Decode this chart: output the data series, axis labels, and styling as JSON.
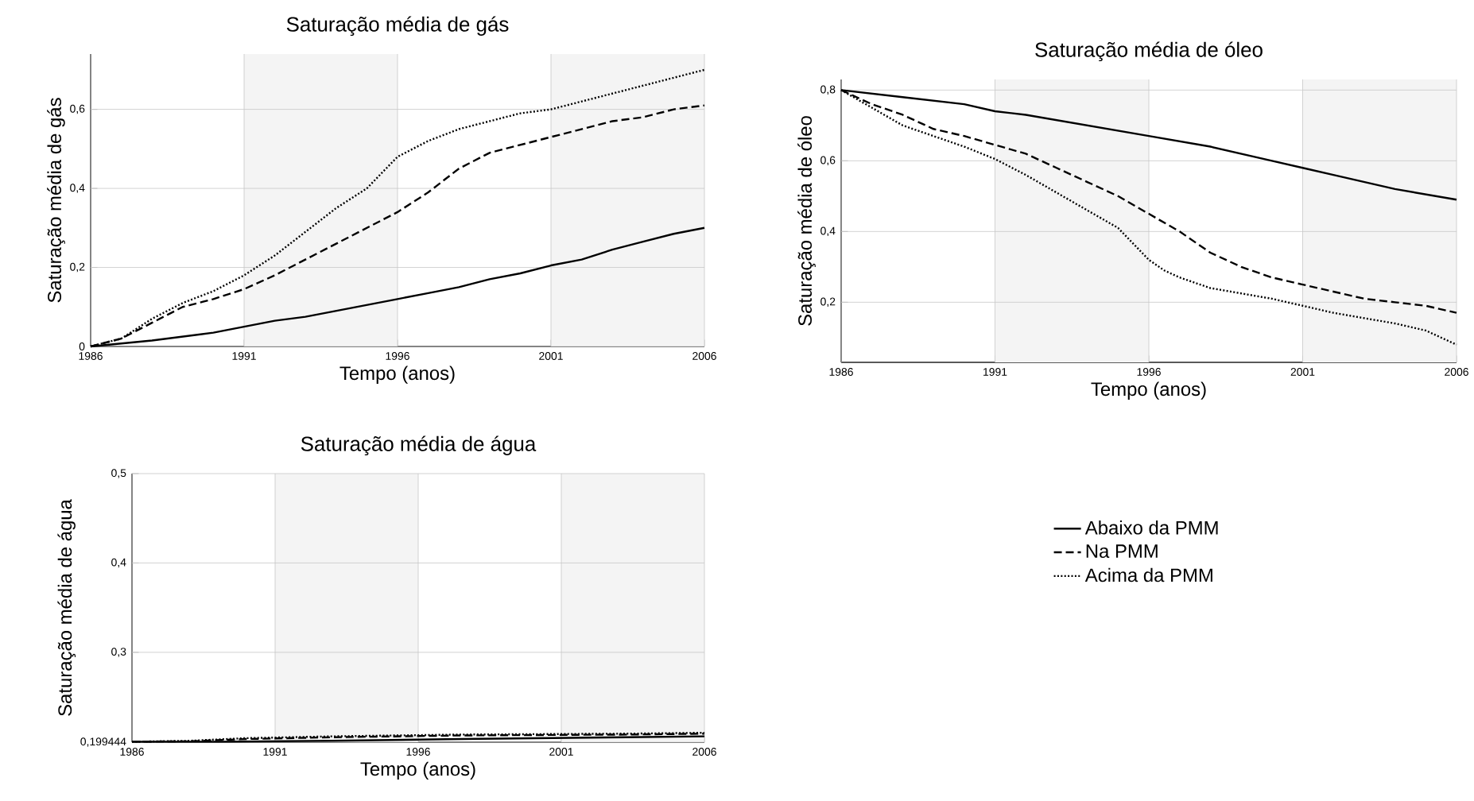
{
  "chart_data": [
    {
      "type": "line",
      "title": "Saturação média de gás",
      "xlabel": "Tempo (anos)",
      "ylabel": "Saturação média de gás",
      "grid": true,
      "xlim": [
        1986,
        2006
      ],
      "xticks": [
        1986,
        1991,
        1996,
        2001,
        2006
      ],
      "ylim": [
        0,
        0.74
      ],
      "yticks": [
        {
          "value": 0,
          "label": "0"
        },
        {
          "value": 0.2,
          "label": "0,2"
        },
        {
          "value": 0.4,
          "label": "0,4"
        },
        {
          "value": 0.6,
          "label": "0,6"
        }
      ],
      "bands": [
        {
          "axis": "x",
          "from": 1991,
          "to": 1996,
          "color": "#f4f4f4"
        },
        {
          "axis": "x",
          "from": 2001,
          "to": 2006,
          "color": "#f4f4f4"
        }
      ],
      "series": [
        {
          "color": "#000000",
          "line_style": "solid",
          "x": [
            1986,
            1988,
            1990,
            1991,
            1992,
            1993,
            1994,
            1995,
            1996,
            1997,
            1998,
            1999,
            2000,
            2001,
            2002,
            2003,
            2004,
            2005,
            2006
          ],
          "values": [
            0,
            0.015,
            0.035,
            0.05,
            0.065,
            0.075,
            0.09,
            0.105,
            0.12,
            0.135,
            0.15,
            0.17,
            0.185,
            0.205,
            0.22,
            0.245,
            0.265,
            0.285,
            0.3
          ]
        },
        {
          "color": "#000000",
          "line_style": "dashed",
          "x": [
            1986,
            1987,
            1988,
            1989,
            1990,
            1991,
            1992,
            1993,
            1994,
            1995,
            1996,
            1997,
            1998,
            1999,
            2000,
            2001,
            2002,
            2003,
            2004,
            2005,
            2006
          ],
          "values": [
            0,
            0.02,
            0.06,
            0.1,
            0.12,
            0.145,
            0.18,
            0.22,
            0.26,
            0.3,
            0.34,
            0.39,
            0.45,
            0.49,
            0.51,
            0.53,
            0.55,
            0.57,
            0.58,
            0.6,
            0.61
          ]
        },
        {
          "color": "#000000",
          "line_style": "dotted",
          "x": [
            1986,
            1987,
            1988,
            1989,
            1990,
            1991,
            1992,
            1993,
            1994,
            1995,
            1995.5,
            1996,
            1996.5,
            1997,
            1998,
            1999,
            2000,
            2001,
            2002,
            2003,
            2004,
            2005,
            2006
          ],
          "values": [
            0,
            0.02,
            0.07,
            0.11,
            0.14,
            0.18,
            0.23,
            0.29,
            0.35,
            0.4,
            0.44,
            0.48,
            0.5,
            0.52,
            0.55,
            0.57,
            0.59,
            0.6,
            0.62,
            0.64,
            0.66,
            0.68,
            0.7
          ]
        }
      ]
    },
    {
      "type": "line",
      "title": "Saturação média de óleo",
      "xlabel": "Tempo (anos)",
      "ylabel": "Saturação média de óleo",
      "grid": true,
      "xlim": [
        1986,
        2006
      ],
      "xticks": [
        1986,
        1991,
        1996,
        2001,
        2006
      ],
      "ylim": [
        0.03,
        0.83
      ],
      "yticks": [
        {
          "value": 0.2,
          "label": "0,2"
        },
        {
          "value": 0.4,
          "label": "0,4"
        },
        {
          "value": 0.6,
          "label": "0,6"
        },
        {
          "value": 0.8,
          "label": "0,8"
        }
      ],
      "bands": [
        {
          "axis": "x",
          "from": 1991,
          "to": 1996,
          "color": "#f4f4f4"
        },
        {
          "axis": "x",
          "from": 2001,
          "to": 2006,
          "color": "#f4f4f4"
        }
      ],
      "series": [
        {
          "color": "#000000",
          "line_style": "solid",
          "x": [
            1986,
            1988,
            1990,
            1991,
            1992,
            1994,
            1996,
            1998,
            2000,
            2001,
            2002,
            2004,
            2006
          ],
          "values": [
            0.8,
            0.78,
            0.76,
            0.74,
            0.73,
            0.7,
            0.67,
            0.64,
            0.6,
            0.58,
            0.56,
            0.52,
            0.49
          ]
        },
        {
          "color": "#000000",
          "line_style": "dashed",
          "x": [
            1986,
            1987,
            1988,
            1989,
            1990,
            1991,
            1992,
            1993,
            1994,
            1995,
            1996,
            1997,
            1998,
            1999,
            2000,
            2001,
            2002,
            2003,
            2004,
            2005,
            2006
          ],
          "values": [
            0.8,
            0.76,
            0.73,
            0.69,
            0.67,
            0.645,
            0.62,
            0.58,
            0.54,
            0.5,
            0.45,
            0.4,
            0.34,
            0.3,
            0.27,
            0.25,
            0.23,
            0.21,
            0.2,
            0.19,
            0.17
          ]
        },
        {
          "color": "#000000",
          "line_style": "dotted",
          "x": [
            1986,
            1987,
            1988,
            1989,
            1990,
            1991,
            1992,
            1993,
            1994,
            1995,
            1996,
            1996.5,
            1997,
            1998,
            2000,
            2001,
            2002,
            2004,
            2005,
            2006
          ],
          "values": [
            0.8,
            0.75,
            0.7,
            0.67,
            0.64,
            0.605,
            0.56,
            0.51,
            0.46,
            0.41,
            0.32,
            0.29,
            0.27,
            0.24,
            0.21,
            0.19,
            0.17,
            0.14,
            0.12,
            0.08
          ]
        }
      ]
    },
    {
      "type": "line",
      "title": "Saturação média de água",
      "xlabel": "Tempo (anos)",
      "ylabel": "Saturação média de água",
      "grid": true,
      "legend": "right",
      "xlim": [
        1986,
        2006
      ],
      "xticks": [
        1986,
        1991,
        1996,
        2001,
        2006
      ],
      "ylim": [
        0.199444,
        0.5
      ],
      "yticks": [
        {
          "value": 0.199444,
          "label": "0,199444"
        },
        {
          "value": 0.3,
          "label": "0,3"
        },
        {
          "value": 0.4,
          "label": "0,4"
        },
        {
          "value": 0.5,
          "label": "0,5"
        }
      ],
      "bands": [
        {
          "axis": "x",
          "from": 1991,
          "to": 1996,
          "color": "#f4f4f4"
        },
        {
          "axis": "x",
          "from": 2001,
          "to": 2006,
          "color": "#f4f4f4"
        }
      ],
      "series": [
        {
          "name": "Abaixo da PMM",
          "color": "#000000",
          "line_style": "solid",
          "x": [
            1986,
            1989,
            1993,
            1997.5,
            2003.3,
            2006
          ],
          "values": [
            0.2,
            0.2,
            0.201,
            0.203,
            0.205,
            0.206
          ]
        },
        {
          "name": "Na PMM",
          "color": "#000000",
          "line_style": "dashed",
          "x": [
            1986,
            1988,
            1990,
            1993,
            1997.5,
            2003.3,
            2006
          ],
          "values": [
            0.2,
            0.2005,
            0.203,
            0.205,
            0.207,
            0.208,
            0.209
          ]
        },
        {
          "name": "Acima da PMM",
          "color": "#000000",
          "line_style": "dotted",
          "x": [
            1986,
            1988,
            1990,
            1993,
            1997.5,
            2003.3,
            2006
          ],
          "values": [
            0.2,
            0.201,
            0.204,
            0.206,
            0.208,
            0.209,
            0.21
          ]
        }
      ]
    }
  ]
}
